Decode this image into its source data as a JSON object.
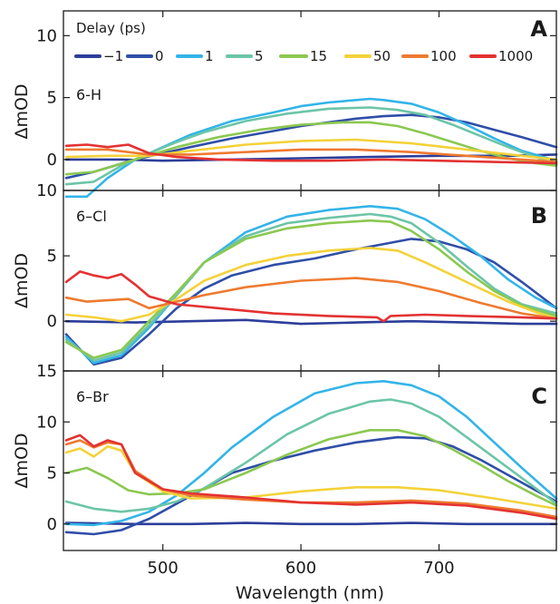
{
  "chart_data": [
    {
      "type": "line",
      "panel_letter": "A",
      "compound": "6-H",
      "legend": {
        "title": "Delay (ps)",
        "placement": "top"
      },
      "ylabel": "ΔmOD",
      "xlabel": "",
      "xlim": [
        428,
        785
      ],
      "ylim": [
        -2.5,
        12
      ],
      "yticks": [
        0,
        5,
        10
      ],
      "xticks": [
        500,
        600,
        700
      ],
      "series": [
        {
          "name": "−1",
          "color": "#2c3e9a",
          "x": [
            430,
            470,
            500,
            550,
            600,
            650,
            700,
            750,
            785
          ],
          "y": [
            0.0,
            0.0,
            -0.1,
            0.0,
            0.1,
            0.2,
            0.3,
            0.3,
            0.4
          ]
        },
        {
          "name": "0",
          "color": "#2f4ea8",
          "x": [
            430,
            450,
            480,
            500,
            520,
            550,
            580,
            600,
            620,
            640,
            660,
            680,
            700,
            720,
            740,
            760,
            785
          ],
          "y": [
            -1.5,
            -1.0,
            0.0,
            0.5,
            1.0,
            1.7,
            2.3,
            2.7,
            3.0,
            3.3,
            3.5,
            3.6,
            3.4,
            3.0,
            2.4,
            1.8,
            1.0
          ]
        },
        {
          "name": "1",
          "color": "#33b4e8",
          "x": [
            430,
            445,
            460,
            480,
            500,
            520,
            550,
            580,
            600,
            620,
            640,
            650,
            660,
            680,
            700,
            720,
            740,
            760,
            785
          ],
          "y": [
            -3.0,
            -3.0,
            -1.5,
            0.0,
            1.0,
            2.0,
            3.1,
            3.8,
            4.3,
            4.6,
            4.8,
            4.9,
            4.8,
            4.5,
            3.8,
            2.8,
            1.7,
            0.7,
            -0.1
          ]
        },
        {
          "name": "5",
          "color": "#6cc5a8",
          "x": [
            430,
            450,
            470,
            490,
            510,
            530,
            560,
            590,
            620,
            650,
            670,
            690,
            710,
            730,
            750,
            770,
            785
          ],
          "y": [
            -2.0,
            -1.8,
            -0.5,
            0.5,
            1.4,
            2.2,
            3.1,
            3.7,
            4.1,
            4.2,
            4.0,
            3.6,
            2.8,
            1.9,
            1.0,
            0.2,
            -0.4
          ]
        },
        {
          "name": "15",
          "color": "#8bc850",
          "x": [
            430,
            450,
            480,
            510,
            540,
            570,
            600,
            630,
            650,
            670,
            690,
            710,
            730,
            750,
            770,
            785
          ],
          "y": [
            -1.2,
            -1.0,
            0.0,
            1.0,
            1.8,
            2.4,
            2.8,
            3.0,
            3.0,
            2.7,
            2.1,
            1.4,
            0.7,
            0.1,
            -0.3,
            -0.5
          ]
        },
        {
          "name": "50",
          "color": "#f3d23a",
          "x": [
            430,
            460,
            490,
            520,
            560,
            600,
            640,
            680,
            720,
            760,
            785
          ],
          "y": [
            0.2,
            0.3,
            0.3,
            0.7,
            1.2,
            1.5,
            1.6,
            1.3,
            0.8,
            0.3,
            0.0
          ]
        },
        {
          "name": "100",
          "color": "#ee7a30",
          "x": [
            430,
            460,
            490,
            520,
            560,
            600,
            640,
            680,
            720,
            760,
            785
          ],
          "y": [
            0.8,
            0.8,
            0.4,
            0.4,
            0.6,
            0.8,
            0.8,
            0.6,
            0.3,
            0.0,
            -0.2
          ]
        },
        {
          "name": "1000",
          "color": "#e33232",
          "x": [
            430,
            445,
            460,
            475,
            490,
            510,
            540,
            580,
            620,
            660,
            700,
            740,
            785
          ],
          "y": [
            1.1,
            1.2,
            1.0,
            1.2,
            0.5,
            0.2,
            0.0,
            -0.1,
            -0.1,
            0.0,
            -0.1,
            -0.2,
            -0.3
          ]
        }
      ]
    },
    {
      "type": "line",
      "panel_letter": "B",
      "compound": "6–Cl",
      "ylabel": "ΔmOD",
      "xlabel": "",
      "xlim": [
        428,
        785
      ],
      "ylim": [
        -3.8,
        10
      ],
      "yticks": [
        0,
        5,
        10
      ],
      "xticks": [
        500,
        600,
        700
      ],
      "series": [
        {
          "name": "−1",
          "color": "#2c3e9a",
          "x": [
            430,
            480,
            520,
            560,
            600,
            640,
            680,
            720,
            760,
            785
          ],
          "y": [
            0.0,
            -0.1,
            0.0,
            0.1,
            -0.2,
            -0.1,
            0.0,
            -0.1,
            -0.2,
            -0.2
          ]
        },
        {
          "name": "0",
          "color": "#2f4ea8",
          "x": [
            430,
            450,
            470,
            490,
            510,
            530,
            550,
            580,
            610,
            640,
            660,
            680,
            700,
            720,
            740,
            760,
            785
          ],
          "y": [
            -1.0,
            -3.3,
            -2.8,
            -1.0,
            1.0,
            2.5,
            3.5,
            4.3,
            4.8,
            5.5,
            5.9,
            6.3,
            6.1,
            5.5,
            4.5,
            3.0,
            1.0
          ]
        },
        {
          "name": "1",
          "color": "#33b4e8",
          "x": [
            430,
            450,
            470,
            490,
            510,
            530,
            560,
            590,
            620,
            650,
            670,
            690,
            710,
            730,
            750,
            770,
            785
          ],
          "y": [
            -1.2,
            -3.2,
            -2.6,
            -0.5,
            2.0,
            4.5,
            6.8,
            8.0,
            8.5,
            8.8,
            8.6,
            7.8,
            6.5,
            5.0,
            3.2,
            1.8,
            1.0
          ]
        },
        {
          "name": "5",
          "color": "#6cc5a8",
          "x": [
            430,
            450,
            470,
            490,
            510,
            530,
            560,
            590,
            620,
            650,
            665,
            680,
            700,
            720,
            740,
            760,
            785
          ],
          "y": [
            -1.4,
            -3.0,
            -2.4,
            -0.3,
            2.0,
            4.5,
            6.5,
            7.5,
            7.9,
            8.2,
            8.0,
            7.5,
            6.0,
            4.2,
            2.5,
            1.3,
            0.6
          ]
        },
        {
          "name": "15",
          "color": "#8bc850",
          "x": [
            430,
            450,
            470,
            490,
            510,
            530,
            560,
            590,
            620,
            650,
            665,
            680,
            700,
            720,
            740,
            760,
            785
          ],
          "y": [
            -1.6,
            -2.8,
            -2.2,
            0.0,
            2.2,
            4.5,
            6.3,
            7.1,
            7.5,
            7.7,
            7.6,
            6.9,
            5.5,
            3.8,
            2.3,
            1.2,
            0.4
          ]
        },
        {
          "name": "50",
          "color": "#f3d23a",
          "x": [
            430,
            450,
            470,
            490,
            510,
            530,
            560,
            590,
            620,
            650,
            670,
            690,
            710,
            730,
            750,
            770,
            785
          ],
          "y": [
            0.5,
            0.3,
            0.0,
            0.5,
            1.7,
            3.1,
            4.3,
            5.0,
            5.4,
            5.6,
            5.4,
            4.5,
            3.5,
            2.5,
            1.5,
            0.7,
            0.2
          ]
        },
        {
          "name": "100",
          "color": "#ee7a30",
          "x": [
            430,
            445,
            460,
            475,
            490,
            510,
            530,
            560,
            600,
            640,
            670,
            700,
            730,
            760,
            785
          ],
          "y": [
            1.8,
            1.5,
            1.6,
            1.7,
            1.0,
            1.5,
            2.0,
            2.6,
            3.1,
            3.3,
            3.0,
            2.3,
            1.4,
            0.6,
            0.2
          ]
        },
        {
          "name": "1000",
          "color": "#e33232",
          "x": [
            430,
            440,
            450,
            460,
            470,
            480,
            490,
            510,
            540,
            580,
            620,
            655,
            660,
            665,
            690,
            720,
            760,
            785
          ],
          "y": [
            3.0,
            3.8,
            3.5,
            3.3,
            3.6,
            2.8,
            1.9,
            1.3,
            1.0,
            0.6,
            0.4,
            0.3,
            0.0,
            0.4,
            0.5,
            0.4,
            0.3,
            0.2
          ]
        }
      ]
    },
    {
      "type": "line",
      "panel_letter": "C",
      "compound": "6–Br",
      "ylabel": "ΔmOD",
      "xlabel": "Wavelength (nm)",
      "xlim": [
        428,
        785
      ],
      "ylim": [
        -2.6,
        15
      ],
      "yticks": [
        0,
        5,
        10,
        15
      ],
      "xticks": [
        500,
        600,
        700
      ],
      "series": [
        {
          "name": "−1",
          "color": "#2c3e9a",
          "x": [
            430,
            480,
            520,
            560,
            600,
            640,
            680,
            720,
            760,
            785
          ],
          "y": [
            0.1,
            0.0,
            0.0,
            0.1,
            0.0,
            0.0,
            0.1,
            0.0,
            0.0,
            0.0
          ]
        },
        {
          "name": "0",
          "color": "#2f4ea8",
          "x": [
            430,
            450,
            470,
            490,
            510,
            530,
            550,
            580,
            610,
            640,
            670,
            690,
            710,
            730,
            750,
            770,
            785
          ],
          "y": [
            -0.8,
            -1.0,
            -0.6,
            0.5,
            2.0,
            3.5,
            5.0,
            6.2,
            7.2,
            8.0,
            8.5,
            8.4,
            7.6,
            6.3,
            4.8,
            3.3,
            2.2
          ]
        },
        {
          "name": "1",
          "color": "#33b4e8",
          "x": [
            430,
            450,
            470,
            490,
            510,
            530,
            550,
            580,
            610,
            640,
            660,
            680,
            700,
            720,
            740,
            760,
            785
          ],
          "y": [
            0.0,
            -0.1,
            0.3,
            1.2,
            2.8,
            5.0,
            7.5,
            10.5,
            12.8,
            13.8,
            14.0,
            13.6,
            12.5,
            10.5,
            8.0,
            5.5,
            2.5
          ]
        },
        {
          "name": "5",
          "color": "#6cc5a8",
          "x": [
            430,
            450,
            470,
            490,
            510,
            530,
            560,
            590,
            620,
            650,
            665,
            680,
            700,
            720,
            740,
            760,
            785
          ],
          "y": [
            2.2,
            1.5,
            1.2,
            1.5,
            2.2,
            3.5,
            6.0,
            8.8,
            10.8,
            12.0,
            12.2,
            11.8,
            10.5,
            8.5,
            6.5,
            4.5,
            2.0
          ]
        },
        {
          "name": "15",
          "color": "#8bc850",
          "x": [
            430,
            445,
            460,
            475,
            490,
            510,
            530,
            560,
            590,
            620,
            650,
            670,
            690,
            710,
            730,
            750,
            770,
            785
          ],
          "y": [
            5.0,
            5.5,
            4.5,
            3.3,
            2.9,
            3.0,
            3.4,
            5.0,
            6.8,
            8.3,
            9.2,
            9.2,
            8.6,
            7.3,
            5.8,
            4.2,
            2.8,
            1.8
          ]
        },
        {
          "name": "50",
          "color": "#f3d23a",
          "x": [
            430,
            440,
            450,
            460,
            470,
            480,
            500,
            520,
            560,
            600,
            640,
            670,
            700,
            740,
            785
          ],
          "y": [
            7.0,
            7.4,
            6.6,
            7.6,
            7.2,
            5.0,
            3.2,
            2.5,
            2.6,
            3.2,
            3.6,
            3.6,
            3.3,
            2.5,
            1.5
          ]
        },
        {
          "name": "100",
          "color": "#ee7a30",
          "x": [
            430,
            440,
            450,
            460,
            470,
            480,
            500,
            520,
            560,
            600,
            640,
            680,
            720,
            760,
            785
          ],
          "y": [
            7.8,
            8.2,
            7.5,
            8.0,
            7.8,
            5.2,
            3.4,
            2.8,
            2.4,
            2.1,
            2.1,
            2.3,
            2.0,
            1.3,
            0.7
          ]
        },
        {
          "name": "1000",
          "color": "#e33232",
          "x": [
            430,
            440,
            450,
            460,
            470,
            480,
            500,
            520,
            560,
            600,
            640,
            680,
            720,
            760,
            785
          ],
          "y": [
            8.2,
            8.7,
            7.6,
            8.2,
            7.8,
            5.0,
            3.4,
            3.0,
            2.6,
            2.1,
            1.9,
            2.1,
            1.8,
            1.1,
            0.5
          ]
        }
      ]
    }
  ]
}
